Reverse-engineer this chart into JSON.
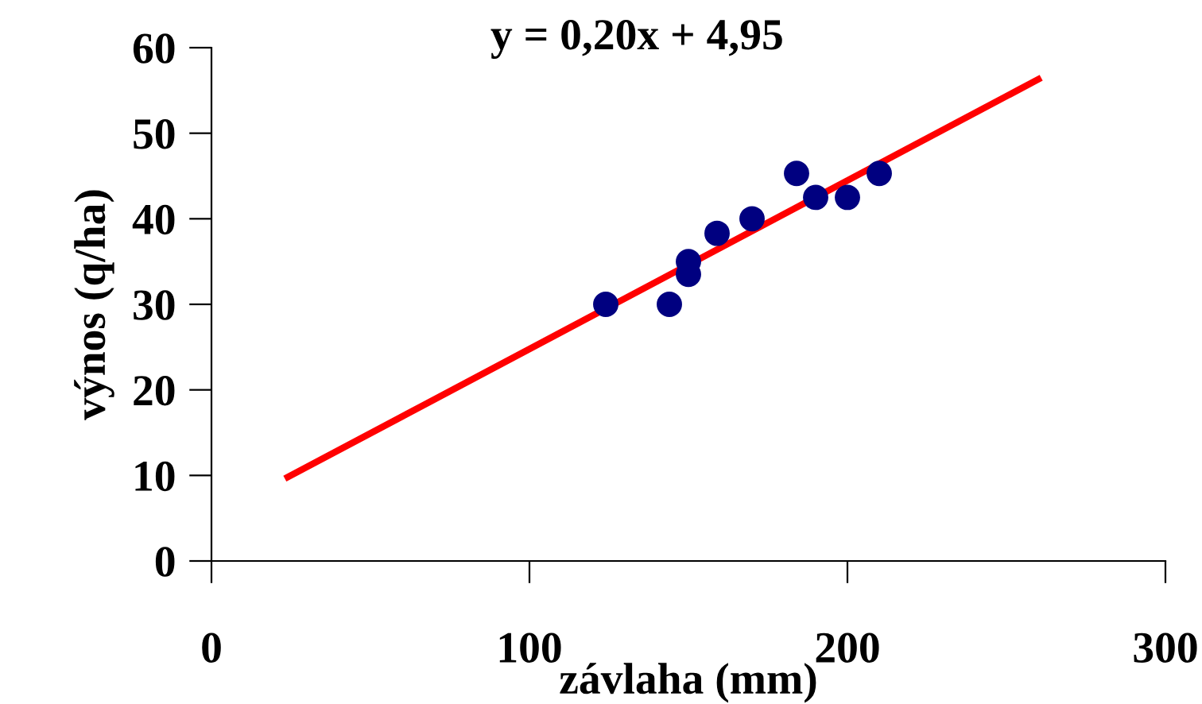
{
  "chart_data": {
    "type": "scatter",
    "xlabel": "závlaha (mm)",
    "ylabel": "výnos (q/ha)",
    "annotations": [
      "y = 0,20x + 4,95"
    ],
    "xlim": [
      0,
      300
    ],
    "xticks": [
      0,
      100,
      200,
      300
    ],
    "ylim": [
      0,
      60
    ],
    "yticks": [
      0,
      10,
      20,
      30,
      40,
      50,
      60
    ],
    "grid": false,
    "legend": false,
    "marker": "circle",
    "series": [
      {
        "color": "#000080",
        "x": [
          124,
          144,
          150,
          150,
          159,
          170,
          184,
          190,
          200,
          210
        ],
        "values": [
          30,
          30,
          35,
          33.5,
          38.3,
          40,
          45.3,
          42.5,
          42.5,
          45.3
        ]
      },
      {
        "type": "line",
        "color": "#ff0000",
        "marker": "none",
        "line_style": "solid",
        "x": [
          24,
          260
        ],
        "values": [
          9.8,
          56.3
        ]
      }
    ]
  }
}
